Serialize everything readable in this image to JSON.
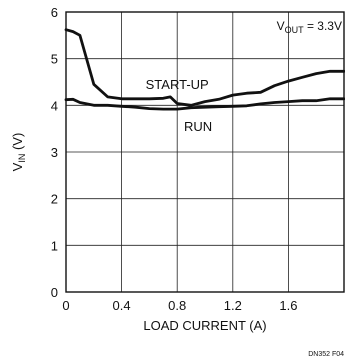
{
  "chart_data": {
    "type": "line",
    "title": "",
    "xlabel": "LOAD CURRENT (A)",
    "ylabel": "V_IN (V)",
    "ylabel_main": "V",
    "ylabel_sub": "IN",
    "ylabel_unit": " (V)",
    "xlim": [
      0,
      2.0
    ],
    "ylim": [
      0,
      6
    ],
    "x_ticks": [
      0,
      0.4,
      0.8,
      1.2,
      1.6
    ],
    "x_tick_labels": [
      "0",
      "0.4",
      "0.8",
      "1.2",
      "1.6"
    ],
    "y_ticks": [
      0,
      1,
      2,
      3,
      4,
      5,
      6
    ],
    "y_tick_labels": [
      "0",
      "1",
      "2",
      "3",
      "4",
      "5",
      "6"
    ],
    "grid": true,
    "annotation": {
      "main": "V",
      "sub": "OUT",
      "rest": " = 3.3V"
    },
    "figure_id": "DN352 F04",
    "series": [
      {
        "name": "START-UP",
        "x": [
          0,
          0.05,
          0.1,
          0.2,
          0.3,
          0.4,
          0.5,
          0.6,
          0.7,
          0.75,
          0.8,
          0.9,
          1.0,
          1.1,
          1.2,
          1.3,
          1.4,
          1.5,
          1.6,
          1.7,
          1.8,
          1.9,
          2.0
        ],
        "y": [
          5.62,
          5.58,
          5.5,
          4.45,
          4.18,
          4.14,
          4.14,
          4.14,
          4.15,
          4.18,
          4.04,
          4.0,
          4.08,
          4.13,
          4.22,
          4.26,
          4.28,
          4.42,
          4.52,
          4.6,
          4.68,
          4.73,
          4.73
        ]
      },
      {
        "name": "RUN",
        "x": [
          0,
          0.05,
          0.1,
          0.2,
          0.3,
          0.4,
          0.5,
          0.6,
          0.7,
          0.8,
          0.9,
          1.0,
          1.1,
          1.2,
          1.3,
          1.4,
          1.5,
          1.6,
          1.7,
          1.8,
          1.9,
          2.0
        ],
        "y": [
          4.12,
          4.13,
          4.06,
          4.0,
          4.0,
          3.98,
          3.96,
          3.93,
          3.92,
          3.92,
          3.95,
          3.96,
          3.97,
          3.98,
          3.99,
          4.03,
          4.06,
          4.08,
          4.1,
          4.1,
          4.14,
          4.14
        ]
      }
    ]
  }
}
